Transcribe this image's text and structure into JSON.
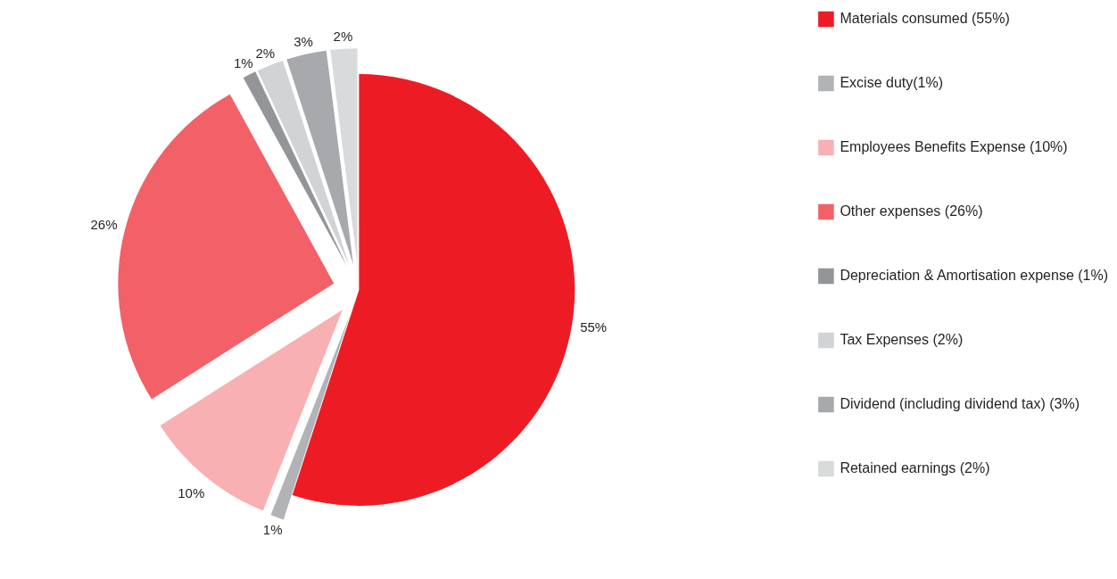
{
  "chart_data": {
    "type": "pie",
    "categories": [
      "Materials consumed (55%)",
      "Excise duty(1%)",
      "Employees Benefits Expense (10%)",
      "Other expenses (26%)",
      "Depreciation & Amortisation expense (1%)",
      "Tax Expenses (2%)",
      "Dividend (including dividend tax) (3%)",
      "Retained earnings (2%)"
    ],
    "values": [
      55,
      1,
      10,
      26,
      1,
      2,
      3,
      2
    ],
    "value_labels": [
      "55%",
      "1%",
      "10%",
      "26%",
      "1%",
      "2%",
      "3%",
      "2%"
    ],
    "colors": [
      "#ed1c24",
      "#b1b3b6",
      "#f8b0b3",
      "#f26168",
      "#939598",
      "#d1d3d4",
      "#a7a9ac",
      "#d9dadb"
    ],
    "legend": "right"
  }
}
